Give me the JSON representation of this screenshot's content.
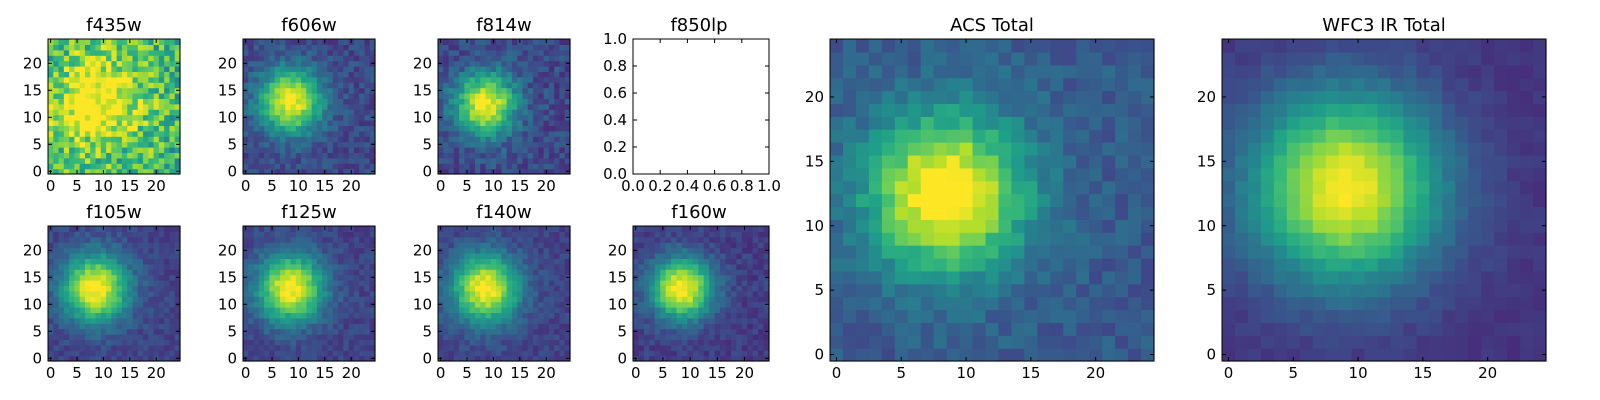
{
  "chart_data": [
    {
      "type": "heatmap",
      "title": "f435w",
      "ylim": [
        0,
        24
      ],
      "xlim": [
        0,
        24
      ],
      "x_ticks": [
        0,
        5,
        10,
        15,
        20
      ],
      "y_ticks": [
        0,
        5,
        10,
        15,
        20
      ],
      "grid_size": 25,
      "center": [
        9,
        13
      ],
      "width": 6,
      "peak": 0.45,
      "background": 0.65,
      "noise": 0.45,
      "empty": false
    },
    {
      "type": "heatmap",
      "title": "f606w",
      "ylim": [
        0,
        24
      ],
      "xlim": [
        0,
        24
      ],
      "x_ticks": [
        0,
        5,
        10,
        15,
        20
      ],
      "y_ticks": [
        0,
        5,
        10,
        15,
        20
      ],
      "grid_size": 25,
      "center": [
        8.5,
        13
      ],
      "width": 4.2,
      "peak": 0.78,
      "background": 0.22,
      "noise": 0.18,
      "empty": false
    },
    {
      "type": "heatmap",
      "title": "f814w",
      "ylim": [
        0,
        24
      ],
      "xlim": [
        0,
        24
      ],
      "x_ticks": [
        0,
        5,
        10,
        15,
        20
      ],
      "y_ticks": [
        0,
        5,
        10,
        15,
        20
      ],
      "grid_size": 25,
      "center": [
        8.5,
        12.5
      ],
      "width": 4.0,
      "peak": 0.8,
      "background": 0.22,
      "noise": 0.2,
      "empty": false
    },
    {
      "type": "empty",
      "title": "f850lp",
      "xlim": [
        0.0,
        1.0
      ],
      "ylim": [
        0.0,
        1.0
      ],
      "x_ticks": [
        "0.0",
        "0.2",
        "0.4",
        "0.6",
        "0.8",
        "1.0"
      ],
      "y_ticks": [
        "0.0",
        "0.2",
        "0.4",
        "0.6",
        "0.8",
        "1.0"
      ],
      "empty": true
    },
    {
      "type": "heatmap",
      "title": "ACS Total",
      "ylim": [
        0,
        24
      ],
      "xlim": [
        0,
        24
      ],
      "x_ticks": [
        0,
        5,
        10,
        15,
        20
      ],
      "y_ticks": [
        0,
        5,
        10,
        15,
        20
      ],
      "grid_size": 25,
      "center": [
        8.5,
        12.5
      ],
      "width": 4.3,
      "peak": 0.8,
      "background": 0.28,
      "noise": 0.14,
      "empty": false
    },
    {
      "type": "heatmap",
      "title": "WFC3 IR Total",
      "ylim": [
        0,
        24
      ],
      "xlim": [
        0,
        24
      ],
      "x_ticks": [
        0,
        5,
        10,
        15,
        20
      ],
      "y_ticks": [
        0,
        5,
        10,
        15,
        20
      ],
      "grid_size": 25,
      "center": [
        9,
        13
      ],
      "width": 5.2,
      "peak": 0.85,
      "background": 0.15,
      "noise": 0.06,
      "empty": false
    },
    {
      "type": "heatmap",
      "title": "f105w",
      "ylim": [
        0,
        24
      ],
      "xlim": [
        0,
        24
      ],
      "x_ticks": [
        0,
        5,
        10,
        15,
        20
      ],
      "y_ticks": [
        0,
        5,
        10,
        15,
        20
      ],
      "grid_size": 25,
      "center": [
        8.5,
        13
      ],
      "width": 4.4,
      "peak": 0.82,
      "background": 0.2,
      "noise": 0.13,
      "empty": false
    },
    {
      "type": "heatmap",
      "title": "f125w",
      "ylim": [
        0,
        24
      ],
      "xlim": [
        0,
        24
      ],
      "x_ticks": [
        0,
        5,
        10,
        15,
        20
      ],
      "y_ticks": [
        0,
        5,
        10,
        15,
        20
      ],
      "grid_size": 25,
      "center": [
        8.5,
        13
      ],
      "width": 4.4,
      "peak": 0.82,
      "background": 0.2,
      "noise": 0.13,
      "empty": false
    },
    {
      "type": "heatmap",
      "title": "f140w",
      "ylim": [
        0,
        24
      ],
      "xlim": [
        0,
        24
      ],
      "x_ticks": [
        0,
        5,
        10,
        15,
        20
      ],
      "y_ticks": [
        0,
        5,
        10,
        15,
        20
      ],
      "grid_size": 25,
      "center": [
        8.5,
        13
      ],
      "width": 4.4,
      "peak": 0.82,
      "background": 0.2,
      "noise": 0.13,
      "empty": false
    },
    {
      "type": "heatmap",
      "title": "f160w",
      "ylim": [
        0,
        24
      ],
      "xlim": [
        0,
        24
      ],
      "x_ticks": [
        0,
        5,
        10,
        15,
        20
      ],
      "y_ticks": [
        0,
        5,
        10,
        15,
        20
      ],
      "grid_size": 25,
      "center": [
        8.5,
        13
      ],
      "width": 4.0,
      "peak": 0.85,
      "background": 0.18,
      "noise": 0.13,
      "empty": false
    }
  ],
  "colormap": [
    "#440154",
    "#482878",
    "#3e4989",
    "#31688e",
    "#26828e",
    "#1f9e89",
    "#35b779",
    "#6ece58",
    "#b5de2b",
    "#fde725"
  ]
}
